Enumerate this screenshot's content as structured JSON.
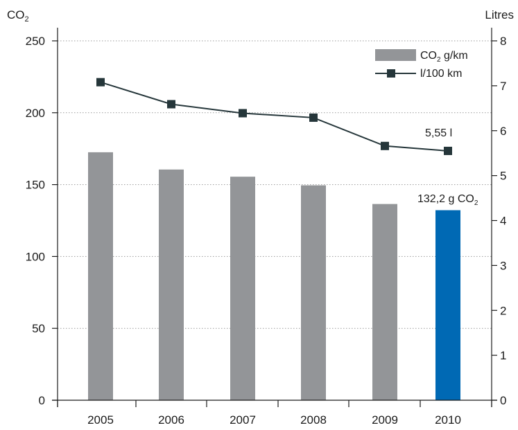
{
  "chart_data": {
    "type": "bar",
    "categories": [
      "2005",
      "2006",
      "2007",
      "2008",
      "2009",
      "2010"
    ],
    "left_axis": {
      "label_main": "CO",
      "label_sub": "2",
      "ylim": [
        0,
        250
      ],
      "ticks": [
        0,
        50,
        100,
        150,
        200,
        250
      ],
      "tick_labels": [
        "0",
        "50",
        "100",
        "150",
        "200",
        "250"
      ]
    },
    "right_axis": {
      "label": "Litres",
      "ylim": [
        0,
        8
      ],
      "ticks": [
        0,
        1,
        2,
        3,
        4,
        5,
        6,
        7,
        8
      ],
      "tick_labels": [
        "0",
        "1",
        "2",
        "3",
        "4",
        "5",
        "6",
        "7",
        "8"
      ]
    },
    "grid": "horizontal-dotted",
    "series": [
      {
        "name_main": "CO",
        "name_sub": "2",
        "name_rest": " g/km",
        "type": "bar",
        "axis": "left",
        "values": [
          172.5,
          160.5,
          155.5,
          149.5,
          136.5,
          132.2
        ],
        "color": "#939598",
        "highlight_color": "#0069b4",
        "highlight_index": 5
      },
      {
        "name": "l/100 km",
        "type": "line",
        "axis": "right",
        "values": [
          7.08,
          6.59,
          6.39,
          6.29,
          5.66,
          5.55
        ],
        "color": "#25363a"
      }
    ],
    "legend_position": "top-right",
    "annotations": [
      {
        "text": "5,55 l",
        "series": "line",
        "index": 5
      },
      {
        "text_main": "132,2 g CO",
        "text_sub": "2",
        "series": "bar",
        "index": 5
      }
    ]
  }
}
